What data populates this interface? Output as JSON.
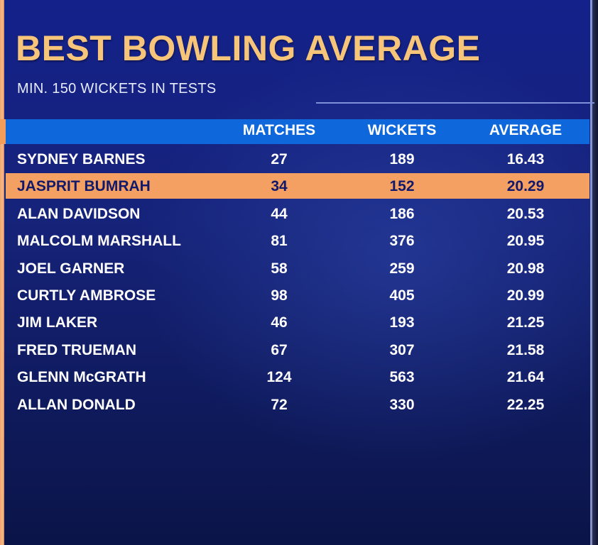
{
  "title": "BEST BOWLING AVERAGE",
  "subtitle": "MIN. 150 WICKETS IN TESTS",
  "headers": {
    "matches": "MATCHES",
    "wickets": "WICKETS",
    "average": "AVERAGE"
  },
  "colors": {
    "title": "#f6c57a",
    "header_bar": "#0f67dc",
    "highlight": "#f4a063",
    "background": "#14218a"
  },
  "rows": [
    {
      "name": "SYDNEY BARNES",
      "matches": "27",
      "wickets": "189",
      "average": "16.43"
    },
    {
      "name": "JASPRIT BUMRAH",
      "matches": "34",
      "wickets": "152",
      "average": "20.29",
      "highlight": true
    },
    {
      "name": "ALAN DAVIDSON",
      "matches": "44",
      "wickets": "186",
      "average": "20.53"
    },
    {
      "name": "MALCOLM MARSHALL",
      "matches": "81",
      "wickets": "376",
      "average": "20.95"
    },
    {
      "name": "JOEL GARNER",
      "matches": "58",
      "wickets": "259",
      "average": "20.98"
    },
    {
      "name": "CURTLY AMBROSE",
      "matches": "98",
      "wickets": "405",
      "average": "20.99"
    },
    {
      "name": "JIM LAKER",
      "matches": "46",
      "wickets": "193",
      "average": "21.25"
    },
    {
      "name": "FRED TRUEMAN",
      "matches": "67",
      "wickets": "307",
      "average": "21.58"
    },
    {
      "name": "GLENN McGRATH",
      "matches": "124",
      "wickets": "563",
      "average": "21.64"
    },
    {
      "name": "ALLAN DONALD",
      "matches": "72",
      "wickets": "330",
      "average": "22.25"
    }
  ]
}
